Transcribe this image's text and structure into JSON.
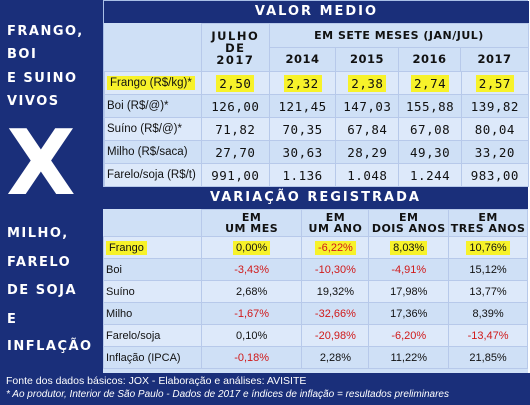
{
  "sidebar": {
    "line1": "FRANGO,",
    "line2": "BOI",
    "line3": "E SUINO",
    "line4": "VIVOS",
    "big_x": "X",
    "line5": "MILHO,",
    "line6": "FARELO",
    "line7": "DE SOJA",
    "line8": "E",
    "line9": "INFLAÇÃO"
  },
  "valor_medio": {
    "title": "VALOR MEDIO",
    "julho_line1": "JULHO",
    "julho_line2": "DE",
    "julho_line3": "2017",
    "sete_meses": "EM SETE MESES (JAN/JUL)",
    "years": [
      "2014",
      "2015",
      "2016",
      "2017"
    ],
    "rows": [
      {
        "label": "Frango  (R$/kg)*",
        "julho": "2,50",
        "values": [
          "2,32",
          "2,38",
          "2,74",
          "2,57"
        ],
        "highlight": true
      },
      {
        "label": "Boi  (R$/@)*",
        "julho": "126,00",
        "values": [
          "121,45",
          "147,03",
          "155,88",
          "139,82"
        ],
        "highlight": false
      },
      {
        "label": "Suíno  (R$/@)*",
        "julho": "71,82",
        "values": [
          "70,35",
          "67,84",
          "67,08",
          "80,04"
        ],
        "highlight": false
      },
      {
        "label": "Milho  (R$/saca)",
        "julho": "27,70",
        "values": [
          "30,63",
          "28,29",
          "49,30",
          "33,20"
        ],
        "highlight": false
      },
      {
        "label": "Farelo/soja  (R$/t)",
        "julho": "991,00",
        "values": [
          "1.136",
          "1.048",
          "1.244",
          "983,00"
        ],
        "highlight": false
      }
    ]
  },
  "variacao": {
    "title": "VARIAÇÃO REGISTRADA",
    "headers": [
      {
        "line1": "EM",
        "line2": "UM MES"
      },
      {
        "line1": "EM",
        "line2": "UM ANO"
      },
      {
        "line1": "EM",
        "line2": "DOIS ANOS"
      },
      {
        "line1": "EM",
        "line2": "TRES ANOS"
      }
    ],
    "rows": [
      {
        "label": "Frango",
        "values": [
          "0,00%",
          "-6,22%",
          "8,03%",
          "10,76%"
        ],
        "highlight": true
      },
      {
        "label": "Boi",
        "values": [
          "-3,43%",
          "-10,30%",
          "-4,91%",
          "15,12%"
        ],
        "highlight": false
      },
      {
        "label": "Suíno",
        "values": [
          "2,68%",
          "19,32%",
          "17,98%",
          "13,77%"
        ],
        "highlight": false
      },
      {
        "label": "Milho",
        "values": [
          "-1,67%",
          "-32,66%",
          "17,36%",
          "8,39%"
        ],
        "highlight": false
      },
      {
        "label": "Farelo/soja",
        "values": [
          "0,10%",
          "-20,98%",
          "-6,20%",
          "-13,47%"
        ],
        "highlight": false
      },
      {
        "label": "Inflação  (IPCA)",
        "values": [
          "-0,18%",
          "2,28%",
          "11,22%",
          "21,85%"
        ],
        "highlight": false
      }
    ]
  },
  "footer": {
    "source": "Fonte dos dados básicos: JOX - Elaboração e análises: AVISITE",
    "note": "* Ao produtor, Interior de São Paulo  -  Dados de 2017 e índices de inflação = resultados preliminares"
  },
  "colors": {
    "navy": "#1a2f7a",
    "panel": "#cfe0f6",
    "highlight": "#f7f22a",
    "negative": "#d01a1a"
  }
}
